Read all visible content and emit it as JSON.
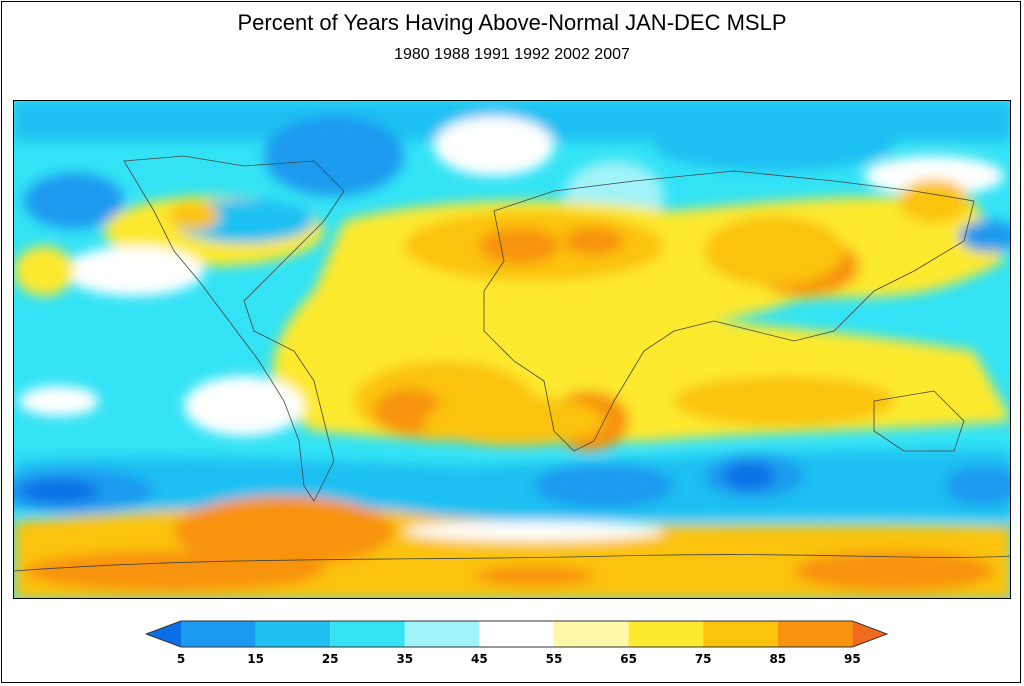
{
  "title": "Percent of Years Having Above-Normal JAN-DEC MSLP",
  "subtitle": "1980 1988 1991 1992 2002 2007",
  "legend": {
    "ticks": [
      "5",
      "15",
      "25",
      "35",
      "45",
      "55",
      "65",
      "75",
      "85",
      "95"
    ],
    "colors": {
      "below_5": "#0a6fe6",
      "5_15": "#1a9af0",
      "15_25": "#1fc0f2",
      "25_35": "#33e3f5",
      "35_45": "#a0f3f8",
      "45_55": "#ffffff",
      "55_65": "#fff8a8",
      "65_75": "#fde92e",
      "75_85": "#fbc30c",
      "85_95": "#f8930e",
      "above_95": "#f26b1c"
    }
  }
}
